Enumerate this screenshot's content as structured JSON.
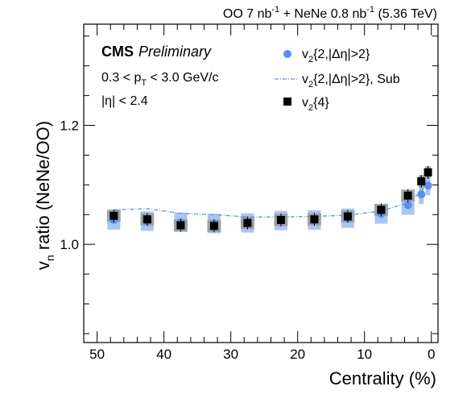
{
  "chart_data": {
    "type": "scatter",
    "title": "",
    "header": {
      "part1": "OO 7 nb",
      "part1_sup": "-1",
      "part2": " + NeNe 0.8 nb",
      "part2_sup": "-1",
      "part3": " (5.36 TeV)"
    },
    "experiment": "CMS",
    "status": "Preliminary",
    "annotations": {
      "pt_prefix": "0.3 < p",
      "pt_sub": "T",
      "pt_suffix": " < 3.0 GeV/c",
      "eta": "|η| < 2.4"
    },
    "xlabel": "Centrality (%)",
    "ylabel_main": "v",
    "ylabel_sub": "n",
    "ylabel_rest": " ratio (NeNe/OO)",
    "xlim": [
      52,
      -1
    ],
    "ylim": [
      0.835,
      1.37
    ],
    "xticks": [
      {
        "value": 50,
        "label": "50"
      },
      {
        "value": 40,
        "label": "40"
      },
      {
        "value": 30,
        "label": "30"
      },
      {
        "value": 20,
        "label": "20"
      },
      {
        "value": 10,
        "label": "10"
      },
      {
        "value": 0,
        "label": "0"
      }
    ],
    "yticks": [
      {
        "value": 1.0,
        "label": "1.0"
      },
      {
        "value": 1.2,
        "label": "1.2"
      }
    ],
    "series": [
      {
        "name_main": "v",
        "name_sub": "2",
        "name_rest": "{2,|Δη|>2}",
        "marker": "circle",
        "color": "#5b8ff0",
        "sys_color": "#a9c6f2",
        "x": [
          47.5,
          42.5,
          37.5,
          32.5,
          27.5,
          22.5,
          17.5,
          12.5,
          7.5,
          3.5,
          1.5,
          0.5
        ],
        "y": [
          1.041,
          1.039,
          1.037,
          1.035,
          1.036,
          1.04,
          1.041,
          1.044,
          1.051,
          1.066,
          1.084,
          1.099
        ]
      },
      {
        "name_main": "v",
        "name_sub": "2",
        "name_rest": "{2,|Δη|>2}, Sub",
        "marker": "dashdot-line",
        "color": "#5b8ff0",
        "x": [
          47.5,
          42.5,
          37.5,
          32.5,
          27.5,
          22.5,
          17.5,
          12.5,
          7.5,
          3.5,
          1.5,
          0.5
        ],
        "y": [
          1.058,
          1.06,
          1.052,
          1.05,
          1.046,
          1.046,
          1.047,
          1.049,
          1.056,
          1.07,
          1.089,
          1.105
        ]
      },
      {
        "name_main": "v",
        "name_sub": "2",
        "name_rest": "{4}",
        "marker": "square",
        "color": "#000000",
        "sys_color": "#9a9a9a",
        "x": [
          47.5,
          42.5,
          37.5,
          32.5,
          27.5,
          22.5,
          17.5,
          12.5,
          7.5,
          3.5,
          1.5,
          0.5
        ],
        "y": [
          1.048,
          1.042,
          1.032,
          1.031,
          1.036,
          1.041,
          1.042,
          1.047,
          1.058,
          1.082,
          1.106,
          1.121
        ]
      }
    ],
    "legend_position": "top-right",
    "grid": false
  }
}
